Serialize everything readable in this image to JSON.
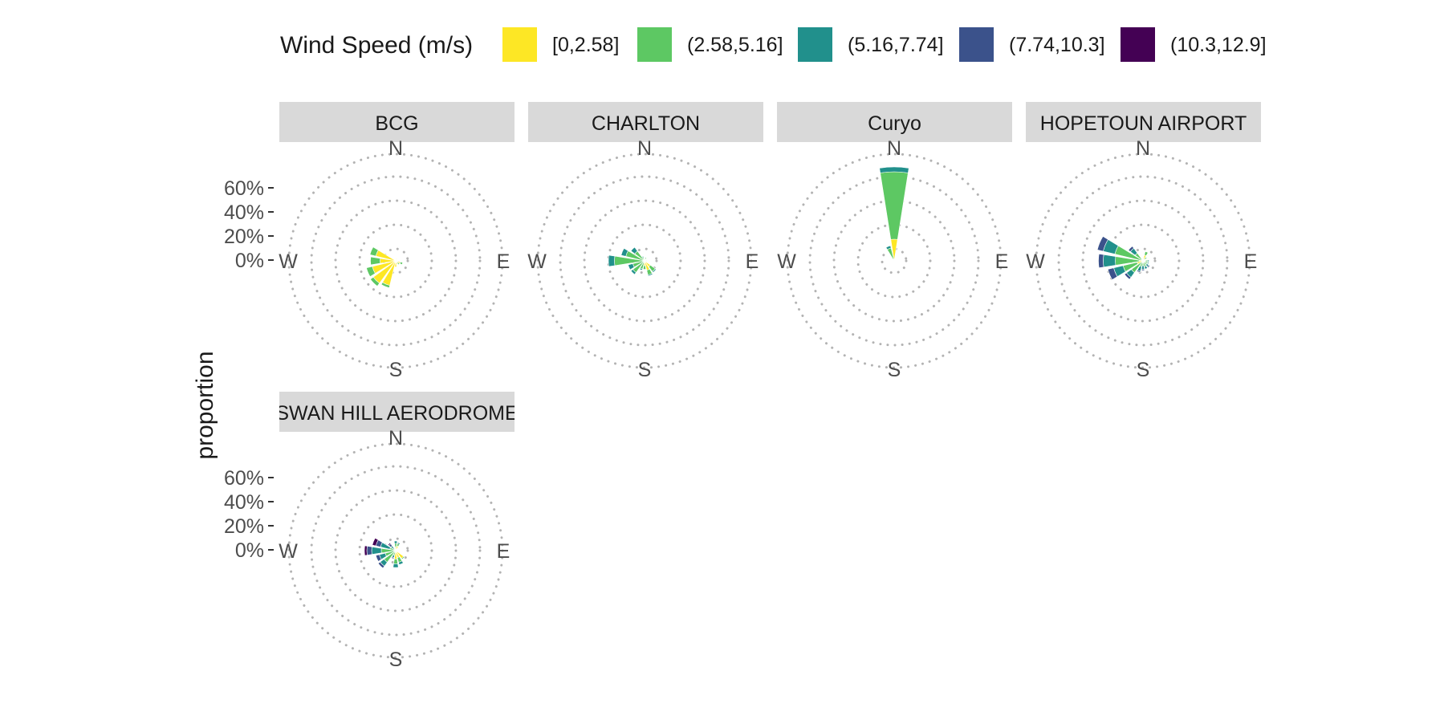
{
  "chart_data": {
    "type": "windrose",
    "ylabel": "proportion",
    "legend": {
      "title": "Wind Speed (m/s)",
      "placement": "top",
      "bins": [
        {
          "label": "[0,2.58]",
          "color": "#FDE725"
        },
        {
          "label": "(2.58,5.16]",
          "color": "#5DC863"
        },
        {
          "label": "(5.16,7.74]",
          "color": "#21908C"
        },
        {
          "label": "(7.74,10.3]",
          "color": "#3B528B"
        },
        {
          "label": "(10.3,12.9]",
          "color": "#440154"
        }
      ]
    },
    "radial_axis": {
      "ticks": [
        "0%",
        "20%",
        "40%",
        "60%"
      ],
      "tick_values": [
        0,
        20,
        40,
        60
      ],
      "max": 80,
      "grid": "dotted"
    },
    "compass_labels": [
      "N",
      "E",
      "S",
      "W"
    ],
    "directions_deg": [
      0,
      22.5,
      45,
      67.5,
      90,
      112.5,
      135,
      157.5,
      180,
      202.5,
      225,
      247.5,
      270,
      292.5,
      315,
      337.5
    ],
    "panels": [
      {
        "name": "BCG",
        "show_y_axis": true,
        "petals": [
          {
            "dir": 22.5,
            "values": [
              2,
              0,
              0,
              0,
              0
            ]
          },
          {
            "dir": 45,
            "values": [
              0,
              1,
              0,
              0,
              0
            ]
          },
          {
            "dir": 90,
            "values": [
              0,
              1,
              0,
              0,
              0
            ]
          },
          {
            "dir": 112.5,
            "values": [
              4,
              2,
              0,
              0,
              0
            ]
          },
          {
            "dir": 135,
            "values": [
              2,
              2,
              0,
              0,
              0
            ]
          },
          {
            "dir": 157.5,
            "values": [
              3,
              0,
              0,
              0,
              0
            ]
          },
          {
            "dir": 180,
            "values": [
              5,
              0,
              0,
              0,
              0
            ]
          },
          {
            "dir": 202.5,
            "values": [
              21,
              2,
              0,
              0,
              0
            ]
          },
          {
            "dir": 225,
            "values": [
              23,
              3,
              0,
              0,
              0
            ]
          },
          {
            "dir": 247.5,
            "values": [
              20,
              5,
              0,
              0,
              0
            ]
          },
          {
            "dir": 270,
            "values": [
              13,
              8,
              0,
              0,
              0
            ]
          },
          {
            "dir": 292.5,
            "values": [
              17,
              5,
              0,
              0,
              0
            ]
          }
        ]
      },
      {
        "name": "CHARLTON",
        "show_y_axis": false,
        "petals": [
          {
            "dir": 22.5,
            "values": [
              1,
              2,
              0,
              0,
              0
            ]
          },
          {
            "dir": 67.5,
            "values": [
              0,
              2,
              0,
              0,
              0
            ]
          },
          {
            "dir": 112.5,
            "values": [
              0,
              2,
              0,
              0,
              0
            ]
          },
          {
            "dir": 135,
            "values": [
              6,
              5,
              1,
              0,
              0
            ]
          },
          {
            "dir": 157.5,
            "values": [
              8,
              4,
              1,
              0,
              0
            ]
          },
          {
            "dir": 180,
            "values": [
              4,
              3,
              0,
              0,
              0
            ]
          },
          {
            "dir": 202.5,
            "values": [
              1,
              6,
              1,
              0,
              0
            ]
          },
          {
            "dir": 225,
            "values": [
              0,
              12,
              2,
              0,
              0
            ]
          },
          {
            "dir": 247.5,
            "values": [
              0,
              10,
              4,
              0,
              0
            ]
          },
          {
            "dir": 270,
            "values": [
              0,
              25,
              5,
              0,
              0
            ]
          },
          {
            "dir": 292.5,
            "values": [
              0,
              16,
              4,
              0,
              0
            ]
          },
          {
            "dir": 315,
            "values": [
              0,
              10,
              4,
              0,
              0
            ]
          },
          {
            "dir": 337.5,
            "values": [
              0,
              3,
              1,
              0,
              0
            ]
          }
        ]
      },
      {
        "name": "Curyo",
        "show_y_axis": false,
        "petals": [
          {
            "dir": 0,
            "values": [
              18,
              56,
              4,
              0,
              0
            ]
          },
          {
            "dir": 337.5,
            "values": [
              0,
              11,
              2,
              0,
              0
            ]
          }
        ]
      },
      {
        "name": "HOPETOUN AIRPORT",
        "show_y_axis": false,
        "petals": [
          {
            "dir": 22.5,
            "values": [
              5,
              3,
              0,
              0,
              0
            ]
          },
          {
            "dir": 45,
            "values": [
              2,
              2,
              0,
              0,
              0
            ]
          },
          {
            "dir": 90,
            "values": [
              2,
              2,
              1,
              0,
              0
            ]
          },
          {
            "dir": 112.5,
            "values": [
              2,
              2,
              1,
              0,
              0
            ]
          },
          {
            "dir": 135,
            "values": [
              1,
              3,
              2,
              1,
              0
            ]
          },
          {
            "dir": 157.5,
            "values": [
              1,
              4,
              2,
              0,
              0
            ]
          },
          {
            "dir": 180,
            "values": [
              0,
              4,
              3,
              1,
              0
            ]
          },
          {
            "dir": 202.5,
            "values": [
              0,
              5,
              4,
              1,
              0
            ]
          },
          {
            "dir": 225,
            "values": [
              1,
              11,
              5,
              2,
              0
            ]
          },
          {
            "dir": 247.5,
            "values": [
              5,
              12,
              8,
              5,
              0
            ]
          },
          {
            "dir": 270,
            "values": [
              3,
              20,
              10,
              4,
              0
            ]
          },
          {
            "dir": 292.5,
            "values": [
              0,
              24,
              10,
              5,
              0
            ]
          },
          {
            "dir": 315,
            "values": [
              0,
              8,
              5,
              2,
              0
            ]
          }
        ]
      },
      {
        "name": "SWAN HILL AERODROME",
        "show_y_axis": true,
        "petals": [
          {
            "dir": 0,
            "values": [
              3,
              3,
              2,
              0,
              0
            ]
          },
          {
            "dir": 22.5,
            "values": [
              4,
              2,
              1,
              0,
              0
            ]
          },
          {
            "dir": 135,
            "values": [
              8,
              1,
              0,
              0,
              0
            ]
          },
          {
            "dir": 157.5,
            "values": [
              6,
              4,
              2,
              0,
              0
            ]
          },
          {
            "dir": 180,
            "values": [
              7,
              4,
              3,
              0,
              0
            ]
          },
          {
            "dir": 202.5,
            "values": [
              0,
              4,
              2,
              1,
              0
            ]
          },
          {
            "dir": 225,
            "values": [
              0,
              12,
              4,
              2,
              0
            ]
          },
          {
            "dir": 247.5,
            "values": [
              0,
              9,
              5,
              3,
              0
            ]
          },
          {
            "dir": 270,
            "values": [
              0,
              12,
              8,
              4,
              2
            ]
          },
          {
            "dir": 292.5,
            "values": [
              0,
              5,
              8,
              4,
              3
            ]
          },
          {
            "dir": 315,
            "values": [
              0,
              2,
              3,
              2,
              1
            ]
          }
        ]
      }
    ]
  }
}
